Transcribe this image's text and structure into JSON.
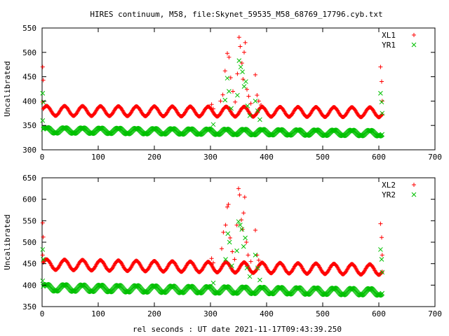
{
  "figure": {
    "title": "HIRES continuum, M58, file:Skynet_59535_M58_68769_17796.cyb.txt",
    "xlabel": "rel seconds : UT date 2021-11-17T09:43:39.250"
  },
  "chart_data": [
    {
      "type": "scatter",
      "ylabel": "Uncalibrated",
      "xlim": [
        0,
        700
      ],
      "ylim": [
        300,
        550
      ],
      "xticks": [
        0,
        100,
        200,
        300,
        400,
        500,
        600,
        700
      ],
      "yticks": [
        300,
        350,
        400,
        450,
        500,
        550
      ],
      "legend_position": "top-right",
      "series": [
        {
          "name": "XL1",
          "marker": "plus",
          "color": "#ff0000",
          "baseline": {
            "x_range": [
              2,
              606
            ],
            "center": 380,
            "amplitude": 10,
            "period": 32,
            "drift": -3
          },
          "spikes": [
            {
              "x": 1,
              "y": 470
            },
            {
              "x": 2,
              "y": 443
            },
            {
              "x": 1,
              "y": 398
            },
            {
              "x": 302,
              "y": 393
            },
            {
              "x": 305,
              "y": 384
            },
            {
              "x": 318,
              "y": 400
            },
            {
              "x": 322,
              "y": 413
            },
            {
              "x": 326,
              "y": 462
            },
            {
              "x": 330,
              "y": 498
            },
            {
              "x": 333,
              "y": 490
            },
            {
              "x": 336,
              "y": 448
            },
            {
              "x": 340,
              "y": 420
            },
            {
              "x": 344,
              "y": 398
            },
            {
              "x": 348,
              "y": 456
            },
            {
              "x": 351,
              "y": 531
            },
            {
              "x": 353,
              "y": 512
            },
            {
              "x": 356,
              "y": 478
            },
            {
              "x": 358,
              "y": 445
            },
            {
              "x": 360,
              "y": 500
            },
            {
              "x": 362,
              "y": 520
            },
            {
              "x": 365,
              "y": 424
            },
            {
              "x": 368,
              "y": 410
            },
            {
              "x": 372,
              "y": 395
            },
            {
              "x": 380,
              "y": 454
            },
            {
              "x": 383,
              "y": 412
            },
            {
              "x": 386,
              "y": 400
            },
            {
              "x": 390,
              "y": 392
            },
            {
              "x": 603,
              "y": 470
            },
            {
              "x": 605,
              "y": 440
            },
            {
              "x": 606,
              "y": 400
            }
          ]
        },
        {
          "name": "YR1",
          "marker": "cross",
          "color": "#00c000",
          "baseline": {
            "x_range": [
              2,
              606
            ],
            "center": 340,
            "amplitude": 6,
            "period": 32,
            "drift": -6
          },
          "spikes": [
            {
              "x": 1,
              "y": 416
            },
            {
              "x": 2,
              "y": 398
            },
            {
              "x": 1,
              "y": 360
            },
            {
              "x": 305,
              "y": 352
            },
            {
              "x": 326,
              "y": 402
            },
            {
              "x": 330,
              "y": 447
            },
            {
              "x": 333,
              "y": 420
            },
            {
              "x": 337,
              "y": 385
            },
            {
              "x": 348,
              "y": 412
            },
            {
              "x": 351,
              "y": 483
            },
            {
              "x": 354,
              "y": 470
            },
            {
              "x": 357,
              "y": 460
            },
            {
              "x": 360,
              "y": 430
            },
            {
              "x": 363,
              "y": 440
            },
            {
              "x": 366,
              "y": 390
            },
            {
              "x": 370,
              "y": 370
            },
            {
              "x": 380,
              "y": 400
            },
            {
              "x": 384,
              "y": 380
            },
            {
              "x": 388,
              "y": 362
            },
            {
              "x": 603,
              "y": 416
            },
            {
              "x": 605,
              "y": 398
            },
            {
              "x": 606,
              "y": 375
            }
          ]
        }
      ]
    },
    {
      "type": "scatter",
      "ylabel": "Uncalibrated",
      "xlim": [
        0,
        700
      ],
      "ylim": [
        350,
        650
      ],
      "xticks": [
        0,
        100,
        200,
        300,
        400,
        500,
        600,
        700
      ],
      "yticks": [
        350,
        400,
        450,
        500,
        550,
        600,
        650
      ],
      "legend_position": "top-right",
      "series": [
        {
          "name": "XL2",
          "marker": "plus",
          "color": "#ff0000",
          "baseline": {
            "x_range": [
              2,
              606
            ],
            "center": 448,
            "amplitude": 12,
            "period": 32,
            "drift": -12
          },
          "spikes": [
            {
              "x": 1,
              "y": 545
            },
            {
              "x": 2,
              "y": 512
            },
            {
              "x": 1,
              "y": 470
            },
            {
              "x": 302,
              "y": 462
            },
            {
              "x": 305,
              "y": 452
            },
            {
              "x": 320,
              "y": 485
            },
            {
              "x": 323,
              "y": 523
            },
            {
              "x": 327,
              "y": 540
            },
            {
              "x": 330,
              "y": 582
            },
            {
              "x": 332,
              "y": 588
            },
            {
              "x": 335,
              "y": 510
            },
            {
              "x": 339,
              "y": 478
            },
            {
              "x": 343,
              "y": 460
            },
            {
              "x": 347,
              "y": 540
            },
            {
              "x": 350,
              "y": 625
            },
            {
              "x": 352,
              "y": 610
            },
            {
              "x": 355,
              "y": 552
            },
            {
              "x": 357,
              "y": 530
            },
            {
              "x": 359,
              "y": 568
            },
            {
              "x": 361,
              "y": 605
            },
            {
              "x": 364,
              "y": 500
            },
            {
              "x": 367,
              "y": 470
            },
            {
              "x": 372,
              "y": 455
            },
            {
              "x": 380,
              "y": 528
            },
            {
              "x": 383,
              "y": 470
            },
            {
              "x": 386,
              "y": 458
            },
            {
              "x": 390,
              "y": 450
            },
            {
              "x": 603,
              "y": 543
            },
            {
              "x": 605,
              "y": 511
            },
            {
              "x": 606,
              "y": 470
            }
          ]
        },
        {
          "name": "YR2",
          "marker": "cross",
          "color": "#00c000",
          "baseline": {
            "x_range": [
              2,
              606
            ],
            "center": 394,
            "amplitude": 8,
            "period": 32,
            "drift": -10
          },
          "spikes": [
            {
              "x": 1,
              "y": 483
            },
            {
              "x": 2,
              "y": 460
            },
            {
              "x": 1,
              "y": 410
            },
            {
              "x": 305,
              "y": 405
            },
            {
              "x": 327,
              "y": 460
            },
            {
              "x": 331,
              "y": 520
            },
            {
              "x": 334,
              "y": 500
            },
            {
              "x": 338,
              "y": 445
            },
            {
              "x": 347,
              "y": 480
            },
            {
              "x": 350,
              "y": 548
            },
            {
              "x": 353,
              "y": 540
            },
            {
              "x": 356,
              "y": 530
            },
            {
              "x": 359,
              "y": 490
            },
            {
              "x": 362,
              "y": 510
            },
            {
              "x": 365,
              "y": 440
            },
            {
              "x": 370,
              "y": 420
            },
            {
              "x": 380,
              "y": 470
            },
            {
              "x": 384,
              "y": 440
            },
            {
              "x": 388,
              "y": 412
            },
            {
              "x": 603,
              "y": 483
            },
            {
              "x": 605,
              "y": 460
            },
            {
              "x": 606,
              "y": 430
            }
          ]
        }
      ]
    }
  ]
}
